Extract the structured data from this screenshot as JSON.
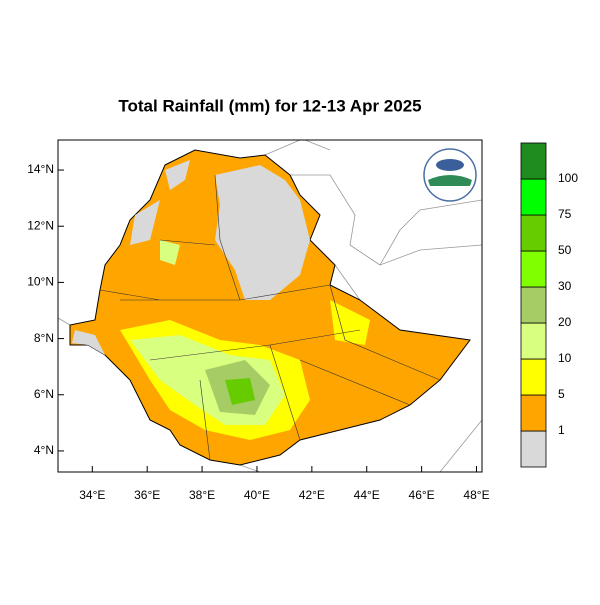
{
  "title": "Total Rainfall (mm) for 12-13 Apr 2025",
  "map": {
    "lon_lim": [
      32.75,
      48.2
    ],
    "lat_lim": [
      3.25,
      15.07
    ],
    "lon_ticks": [
      {
        "value": 34,
        "label": "34°E"
      },
      {
        "value": 36,
        "label": "36°E"
      },
      {
        "value": 38,
        "label": "38°E"
      },
      {
        "value": 40,
        "label": "40°E"
      },
      {
        "value": 42,
        "label": "42°E"
      },
      {
        "value": 44,
        "label": "44°E"
      },
      {
        "value": 46,
        "label": "46°E"
      },
      {
        "value": 48,
        "label": "48°E"
      }
    ],
    "lat_ticks": [
      {
        "value": 4,
        "label": "4°N"
      },
      {
        "value": 6,
        "label": "6°N"
      },
      {
        "value": 8,
        "label": "8°N"
      },
      {
        "value": 10,
        "label": "10°N"
      },
      {
        "value": 12,
        "label": "12°N"
      },
      {
        "value": 14,
        "label": "14°N"
      }
    ]
  },
  "colorbar": {
    "levels": [
      1,
      5,
      10,
      20,
      30,
      50,
      75,
      100
    ],
    "colors": [
      "#d9d9d9",
      "#ffa500",
      "#ffff00",
      "#d9ff80",
      "#a6cc66",
      "#7fff00",
      "#66cc00",
      "#00ff00",
      "#1e8c1e"
    ]
  }
}
